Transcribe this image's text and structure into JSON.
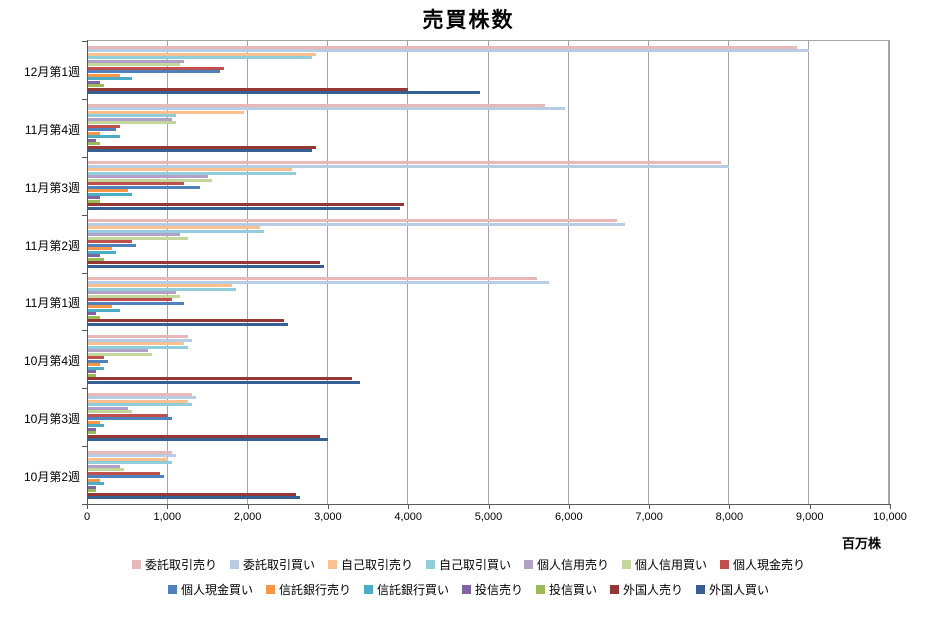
{
  "chart_data": {
    "type": "bar",
    "orientation": "horizontal",
    "title": "売買株数",
    "xlabel": "百万株",
    "ylabel": "",
    "xlim": [
      0,
      10000
    ],
    "x_tick_step": 1000,
    "x_ticks": [
      "0",
      "1,000",
      "2,000",
      "3,000",
      "4,000",
      "5,000",
      "6,000",
      "7,000",
      "8,000",
      "9,000",
      "10,000"
    ],
    "grid": true,
    "legend_position": "bottom",
    "categories": [
      "12月第1週",
      "11月第4週",
      "11月第3週",
      "11月第2週",
      "11月第1週",
      "10月第4週",
      "10月第3週",
      "10月第2週"
    ],
    "series": [
      {
        "name": "委託取引売り",
        "color": "#e6b9b8",
        "values": [
          8850,
          5700,
          7900,
          6600,
          5600,
          1250,
          1300,
          1050
        ]
      },
      {
        "name": "委託取引買い",
        "color": "#b8cce4",
        "values": [
          9000,
          5950,
          8000,
          6700,
          5750,
          1300,
          1350,
          1100
        ]
      },
      {
        "name": "自己取引売り",
        "color": "#fac08f",
        "values": [
          2850,
          1950,
          2550,
          2150,
          1800,
          1200,
          1250,
          1000
        ]
      },
      {
        "name": "自己取引買い",
        "color": "#92cddc",
        "values": [
          2800,
          1100,
          2600,
          2200,
          1850,
          1250,
          1300,
          1050
        ]
      },
      {
        "name": "個人信用売り",
        "color": "#b2a1c7",
        "values": [
          1200,
          1050,
          1500,
          1150,
          1100,
          750,
          500,
          400
        ]
      },
      {
        "name": "個人信用買い",
        "color": "#c3d69b",
        "values": [
          1150,
          1100,
          1550,
          1250,
          1150,
          800,
          550,
          450
        ]
      },
      {
        "name": "個人現金売り",
        "color": "#c0504d",
        "values": [
          1700,
          400,
          1200,
          550,
          1050,
          200,
          1000,
          900
        ]
      },
      {
        "name": "個人現金買い",
        "color": "#4f81bd",
        "values": [
          1650,
          350,
          1400,
          600,
          1200,
          250,
          1050,
          950
        ]
      },
      {
        "name": "信託銀行売り",
        "color": "#f79646",
        "values": [
          400,
          150,
          500,
          300,
          300,
          150,
          150,
          150
        ]
      },
      {
        "name": "信託銀行買い",
        "color": "#4bacc6",
        "values": [
          550,
          400,
          550,
          350,
          400,
          200,
          200,
          200
        ]
      },
      {
        "name": "投信売り",
        "color": "#8064a2",
        "values": [
          150,
          100,
          150,
          150,
          100,
          100,
          100,
          100
        ]
      },
      {
        "name": "投信買い",
        "color": "#9bbb59",
        "values": [
          200,
          150,
          150,
          200,
          150,
          100,
          100,
          100
        ]
      },
      {
        "name": "外国人売り",
        "color": "#953735",
        "values": [
          4000,
          2850,
          3950,
          2900,
          2450,
          3300,
          2900,
          2600
        ]
      },
      {
        "name": "外国人買い",
        "color": "#366092",
        "values": [
          4900,
          2800,
          3900,
          2950,
          2500,
          3400,
          3000,
          2650
        ]
      }
    ]
  }
}
